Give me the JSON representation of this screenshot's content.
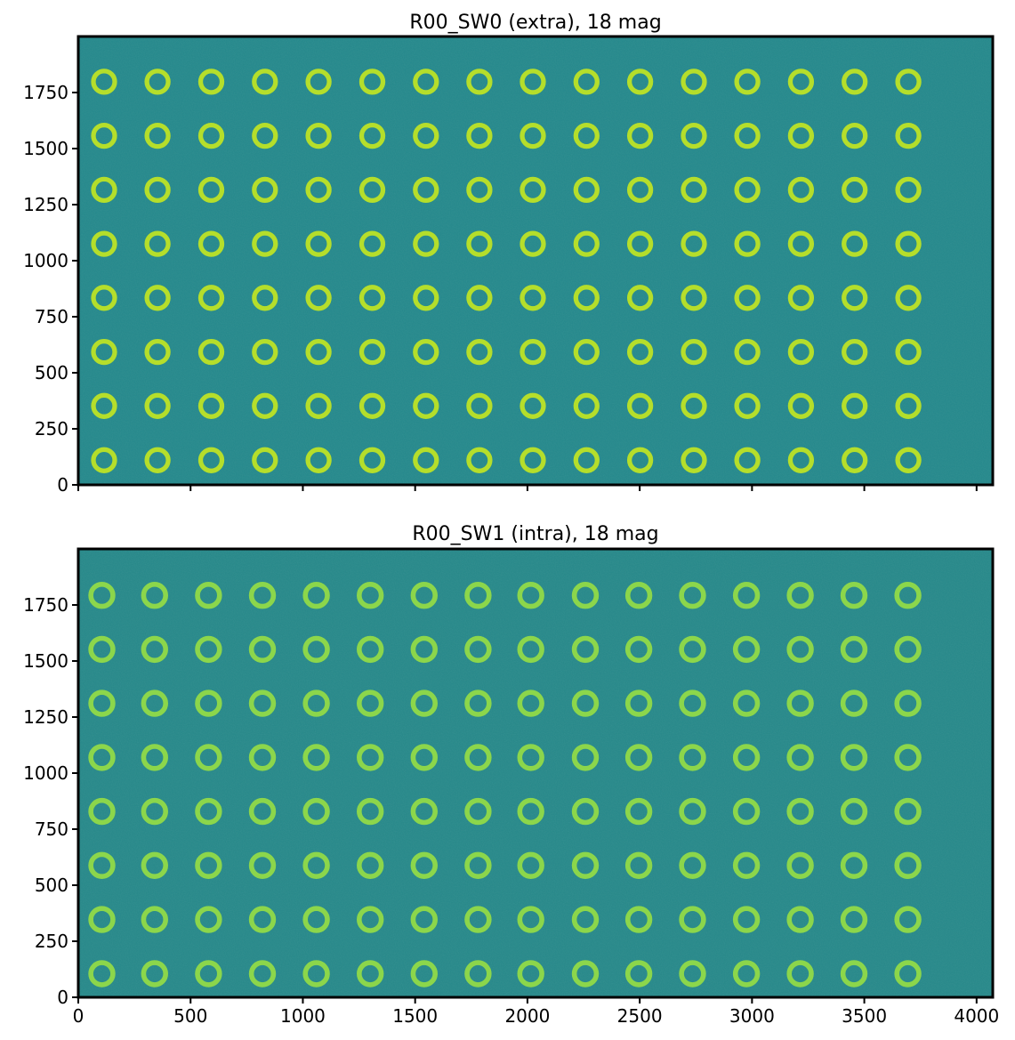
{
  "chart_data": [
    {
      "type": "heatmap",
      "title": "R00_SW0 (extra), 18 mag",
      "xlim": [
        0,
        4072
      ],
      "ylim": [
        0,
        2000
      ],
      "x_ticks": [
        0,
        500,
        1000,
        1500,
        2000,
        2500,
        3000,
        3500,
        4000
      ],
      "x_tick_labels": [],
      "y_ticks": [
        0,
        250,
        500,
        750,
        1000,
        1250,
        1500,
        1750
      ],
      "y_tick_labels": [
        "0",
        "250",
        "500",
        "750",
        "1000",
        "1250",
        "1500",
        "1750"
      ],
      "grid": false,
      "colormap": "viridis",
      "background_color": "#24898c",
      "ring_color": "#b5de2b",
      "donut_centers_x": [
        115,
        353,
        592,
        831,
        1070,
        1309,
        1548,
        1786,
        2024,
        2263,
        2502,
        2741,
        2979,
        3218,
        3457,
        3696
      ],
      "donut_centers_y": [
        110,
        352,
        593,
        834,
        1075,
        1316,
        1557,
        1798
      ],
      "donut_outer_radius": 58,
      "donut_inner_radius": 37
    },
    {
      "type": "heatmap",
      "title": "R00_SW1 (intra), 18 mag",
      "xlim": [
        0,
        4072
      ],
      "ylim": [
        0,
        2000
      ],
      "x_ticks": [
        0,
        500,
        1000,
        1500,
        2000,
        2500,
        3000,
        3500,
        4000
      ],
      "x_tick_labels": [
        "0",
        "500",
        "1000",
        "1500",
        "2000",
        "2500",
        "3000",
        "3500",
        "4000"
      ],
      "y_ticks": [
        0,
        250,
        500,
        750,
        1000,
        1250,
        1500,
        1750
      ],
      "y_tick_labels": [
        "0",
        "250",
        "500",
        "750",
        "1000",
        "1250",
        "1500",
        "1750"
      ],
      "grid": false,
      "colormap": "viridis",
      "background_color": "#26898a",
      "ring_color": "#8cd64b",
      "donut_centers_x": [
        105,
        340,
        580,
        820,
        1060,
        1300,
        1540,
        1780,
        2015,
        2258,
        2496,
        2735,
        2975,
        3215,
        3454,
        3694
      ],
      "donut_centers_y": [
        105,
        347,
        588,
        829,
        1070,
        1311,
        1552,
        1793
      ],
      "donut_outer_radius": 60,
      "donut_inner_radius": 38
    }
  ]
}
